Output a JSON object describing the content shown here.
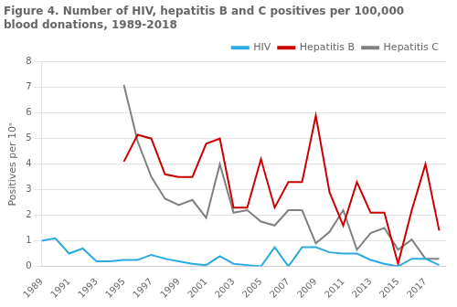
{
  "chart_data": {
    "type": "line",
    "title": [
      "Figure 4. Number of HIV, hepatitis B and C positives per 100,000",
      "blood donations, 1989-2018"
    ],
    "y_label": "Positives per 10ˢ",
    "x": [
      1989,
      1990,
      1991,
      1992,
      1993,
      1994,
      1995,
      1996,
      1997,
      1998,
      1999,
      2000,
      2001,
      2002,
      2003,
      2004,
      2005,
      2006,
      2007,
      2008,
      2009,
      2010,
      2011,
      2012,
      2013,
      2014,
      2015,
      2016,
      2017,
      2018
    ],
    "series": [
      {
        "name": "HIV",
        "color": "#29ABE2",
        "values": [
          1.0,
          1.1,
          0.5,
          0.7,
          0.2,
          0.2,
          0.25,
          0.25,
          0.45,
          0.3,
          0.2,
          0.1,
          0.05,
          0.4,
          0.1,
          0.05,
          0.0,
          0.75,
          0.0,
          0.75,
          0.75,
          0.55,
          0.5,
          0.5,
          0.25,
          0.1,
          0.0,
          0.3,
          0.3,
          0.05
        ]
      },
      {
        "name": "Hepatitis B",
        "color": "#CC0000",
        "values": [
          null,
          null,
          null,
          null,
          null,
          null,
          4.1,
          5.15,
          5.0,
          3.6,
          3.5,
          3.5,
          4.8,
          5.0,
          2.3,
          2.3,
          4.2,
          2.3,
          3.3,
          3.3,
          5.9,
          2.9,
          1.6,
          3.3,
          2.1,
          2.1,
          0.1,
          2.2,
          4.0,
          1.4
        ]
      },
      {
        "name": "Hepatitis C",
        "color": "#808080",
        "values": [
          null,
          null,
          null,
          null,
          null,
          null,
          7.1,
          4.9,
          3.5,
          2.65,
          2.4,
          2.6,
          1.9,
          4.0,
          2.1,
          2.2,
          1.75,
          1.6,
          2.2,
          2.2,
          0.9,
          1.35,
          2.2,
          0.65,
          1.3,
          1.5,
          0.65,
          1.05,
          0.3,
          0.3
        ]
      }
    ],
    "xlim": [
      1989,
      2018.5
    ],
    "xticks": [
      1989,
      1991,
      1993,
      1995,
      1997,
      1999,
      2001,
      2003,
      2005,
      2007,
      2009,
      2011,
      2013,
      2015,
      2017
    ],
    "ylim": [
      0,
      8
    ],
    "yticks": [
      0,
      1,
      2,
      3,
      4,
      5,
      6,
      7,
      8
    ],
    "grid": true,
    "legend": "upper right"
  }
}
